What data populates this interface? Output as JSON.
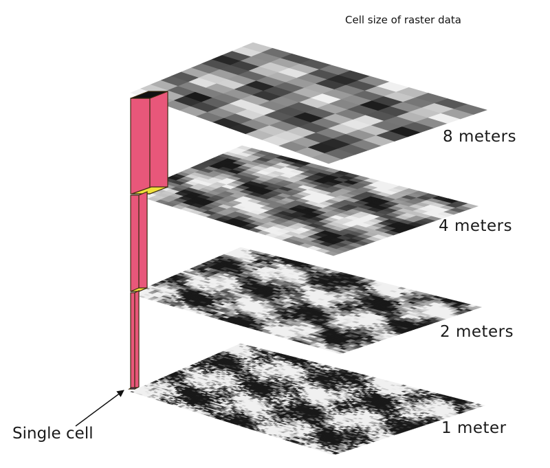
{
  "title": "Cell size of raster data",
  "layers": [
    {
      "label": "8 meters",
      "cell_size_m": 8
    },
    {
      "label": "4 meters",
      "cell_size_m": 4
    },
    {
      "label": "2 meters",
      "cell_size_m": 2
    },
    {
      "label": "1 meter",
      "cell_size_m": 1
    }
  ],
  "callout": {
    "label": "Single cell"
  },
  "colors": {
    "column": "#e8577a",
    "column_edge": "#3a2a10",
    "cell_top": "#f0e03a"
  }
}
